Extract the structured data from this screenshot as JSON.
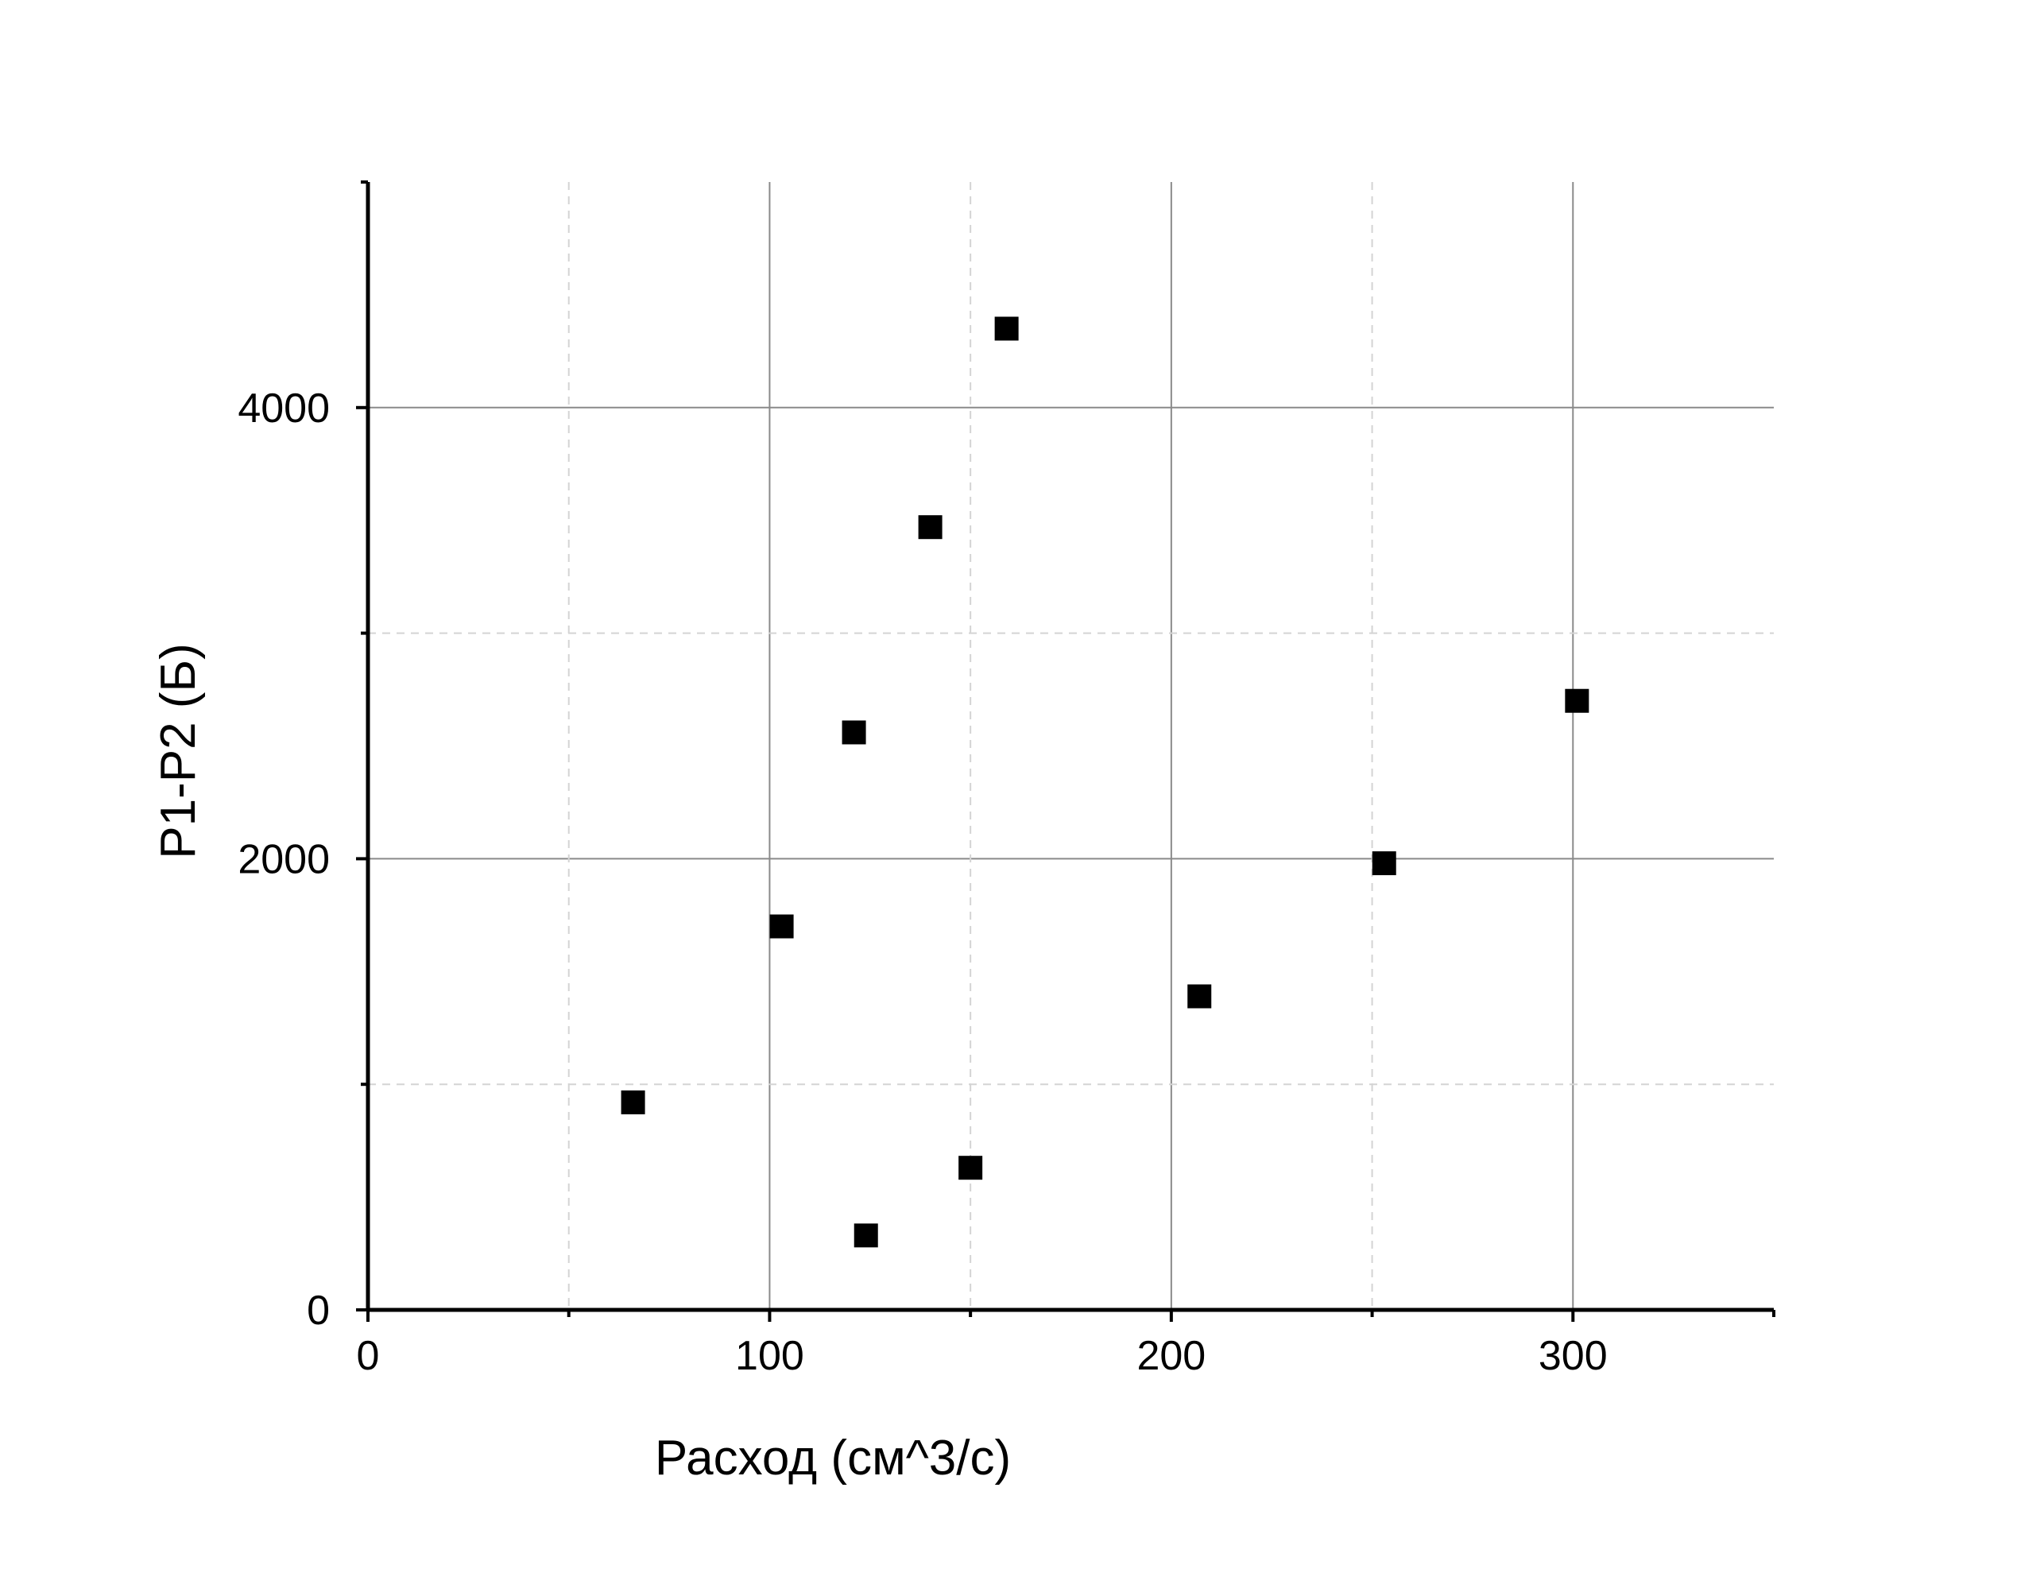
{
  "chart_data": {
    "type": "scatter",
    "title": "",
    "xlabel": "Расход (см^3/с)",
    "ylabel": "P1-P2 (Б)",
    "xlim": [
      0,
      350
    ],
    "ylim": [
      0,
      5000
    ],
    "x_ticks": [
      0,
      100,
      200,
      300
    ],
    "x_tick_labels": [
      "0",
      "100",
      "200",
      "300"
    ],
    "x_minor_ticks": [
      50,
      150,
      250,
      350
    ],
    "y_ticks": [
      0,
      2000,
      4000
    ],
    "y_tick_labels": [
      "0",
      "2000",
      "4000"
    ],
    "y_minor_ticks": [
      1000,
      3000,
      5000
    ],
    "grid": true,
    "legend": "none",
    "marker": "square",
    "marker_color": "#000000",
    "series": [
      {
        "x": [
          66,
          103,
          121,
          124,
          140,
          150,
          159,
          207,
          253,
          301
        ],
        "y": [
          920,
          1700,
          2560,
          330,
          3470,
          630,
          4350,
          1390,
          1980,
          2700
        ]
      }
    ]
  }
}
